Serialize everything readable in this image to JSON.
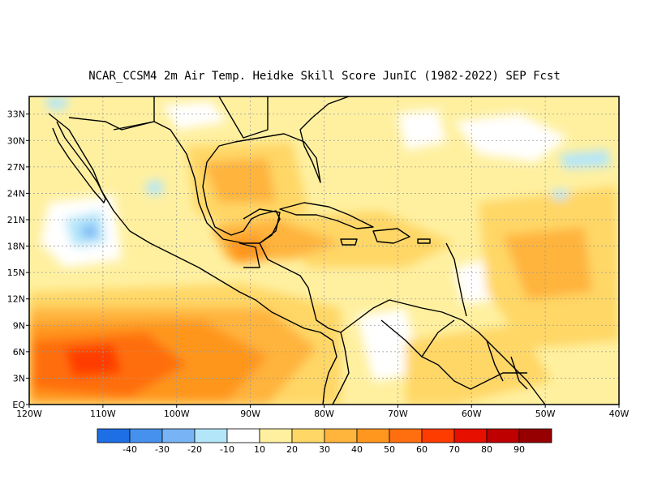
{
  "title": "NCAR_CCSM4  2m Air Temp. Heidke Skill Score JunIC (1982-2022) SEP Fcst",
  "map": {
    "lat_labels": [
      "33N",
      "30N",
      "27N",
      "24N",
      "21N",
      "18N",
      "15N",
      "12N",
      "9N",
      "6N",
      "3N",
      "EQ"
    ],
    "lon_labels": [
      "120W",
      "110W",
      "100W",
      "90W",
      "80W",
      "70W",
      "60W",
      "50W",
      "40W"
    ],
    "extent": {
      "lon_min": -120,
      "lon_max": -40,
      "lat_min": 0,
      "lat_max": 35
    }
  },
  "colorbar": {
    "labels": [
      "-40",
      "-30",
      "-20",
      "-10",
      "10",
      "20",
      "30",
      "40",
      "50",
      "60",
      "70",
      "80",
      "90"
    ],
    "colors": [
      "#1e6ee6",
      "#4691ee",
      "#78b4f5",
      "#b4e6fa",
      "#ffffff",
      "#fff0a0",
      "#ffd766",
      "#ffb43c",
      "#ff961e",
      "#ff6e0f",
      "#ff3c00",
      "#e60f00",
      "#be0000",
      "#960000"
    ]
  }
}
